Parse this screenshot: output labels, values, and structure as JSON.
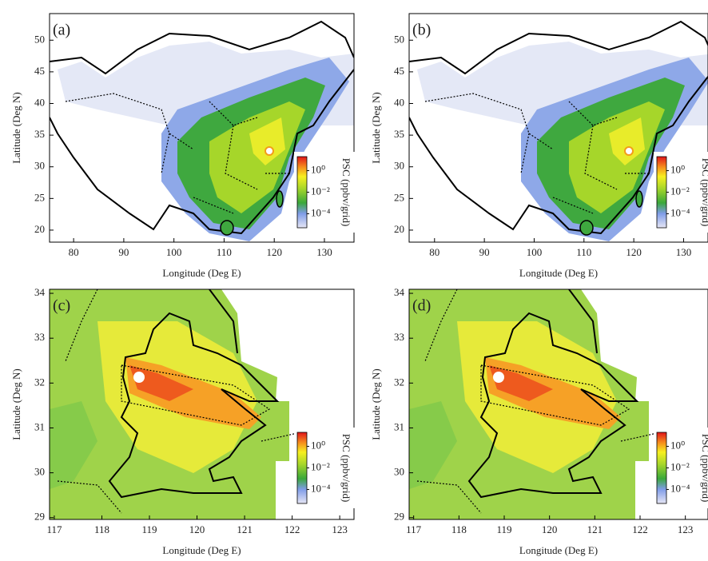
{
  "panels": [
    {
      "label": "(a)",
      "xlabel": "Longitude (Deg E)",
      "ylabel": "Latitude (Deg N)",
      "xlim": [
        75.2,
        135.9
      ],
      "ylim": [
        18.1,
        54.2
      ],
      "xticks": [
        80,
        90,
        100,
        110,
        120,
        130
      ],
      "yticks": [
        20,
        25,
        30,
        35,
        40,
        45,
        50
      ],
      "colorbar": {
        "label": "PSC (ppbv/grid)",
        "log": true,
        "clim": [
          5e-06,
          20
        ],
        "ticks": [
          {
            "value": 1,
            "label": "10⁰"
          },
          {
            "value": 0.01,
            "label": "10⁻²"
          },
          {
            "value": 0.0001,
            "label": "10⁻⁴"
          }
        ]
      }
    },
    {
      "label": "(b)",
      "xlabel": "Longitude (Deg E)",
      "ylabel": "Latitude (Deg N)",
      "xlim": [
        74.9,
        134.9
      ],
      "ylim": [
        18.1,
        54.2
      ],
      "xticks": [
        80,
        90,
        100,
        110,
        120,
        130
      ],
      "yticks": [
        20,
        25,
        30,
        35,
        40,
        45,
        50
      ],
      "colorbar": {
        "label": "PSC (ppbv/grid)",
        "log": true,
        "clim": [
          5e-06,
          20
        ],
        "ticks": [
          {
            "value": 1,
            "label": "10⁰"
          },
          {
            "value": 0.01,
            "label": "10⁻²"
          },
          {
            "value": 0.0001,
            "label": "10⁻⁴"
          }
        ]
      }
    },
    {
      "label": "(c)",
      "xlabel": "Longitude (Deg E)",
      "ylabel": "Latitude (Deg N)",
      "xlim": [
        116.9,
        123.3
      ],
      "ylim": [
        28.96,
        34.09
      ],
      "xticks": [
        117,
        118,
        119,
        120,
        121,
        122,
        123
      ],
      "yticks": [
        29,
        30,
        31,
        32,
        33,
        34
      ],
      "colorbar": {
        "label": "PSC (ppbv/grid)",
        "log": true,
        "clim": [
          5e-06,
          20
        ],
        "ticks": [
          {
            "value": 1,
            "label": "10⁰"
          },
          {
            "value": 0.01,
            "label": "10⁻²"
          },
          {
            "value": 0.0001,
            "label": "10⁻⁴"
          }
        ]
      }
    },
    {
      "label": "(d)",
      "xlabel": "Longitude (Deg E)",
      "ylabel": "Latitude (Deg N)",
      "xlim": [
        116.9,
        123.5
      ],
      "ylim": [
        28.96,
        34.09
      ],
      "xticks": [
        117,
        118,
        119,
        120,
        121,
        122,
        123
      ],
      "yticks": [
        29,
        30,
        31,
        32,
        33,
        34
      ],
      "colorbar": {
        "label": "PSC (ppbv/grid)",
        "log": true,
        "clim": [
          5e-06,
          20
        ],
        "ticks": [
          {
            "value": 1,
            "label": "10⁰"
          },
          {
            "value": 0.01,
            "label": "10⁻²"
          },
          {
            "value": 0.0001,
            "label": "10⁻⁴"
          }
        ]
      }
    }
  ]
}
